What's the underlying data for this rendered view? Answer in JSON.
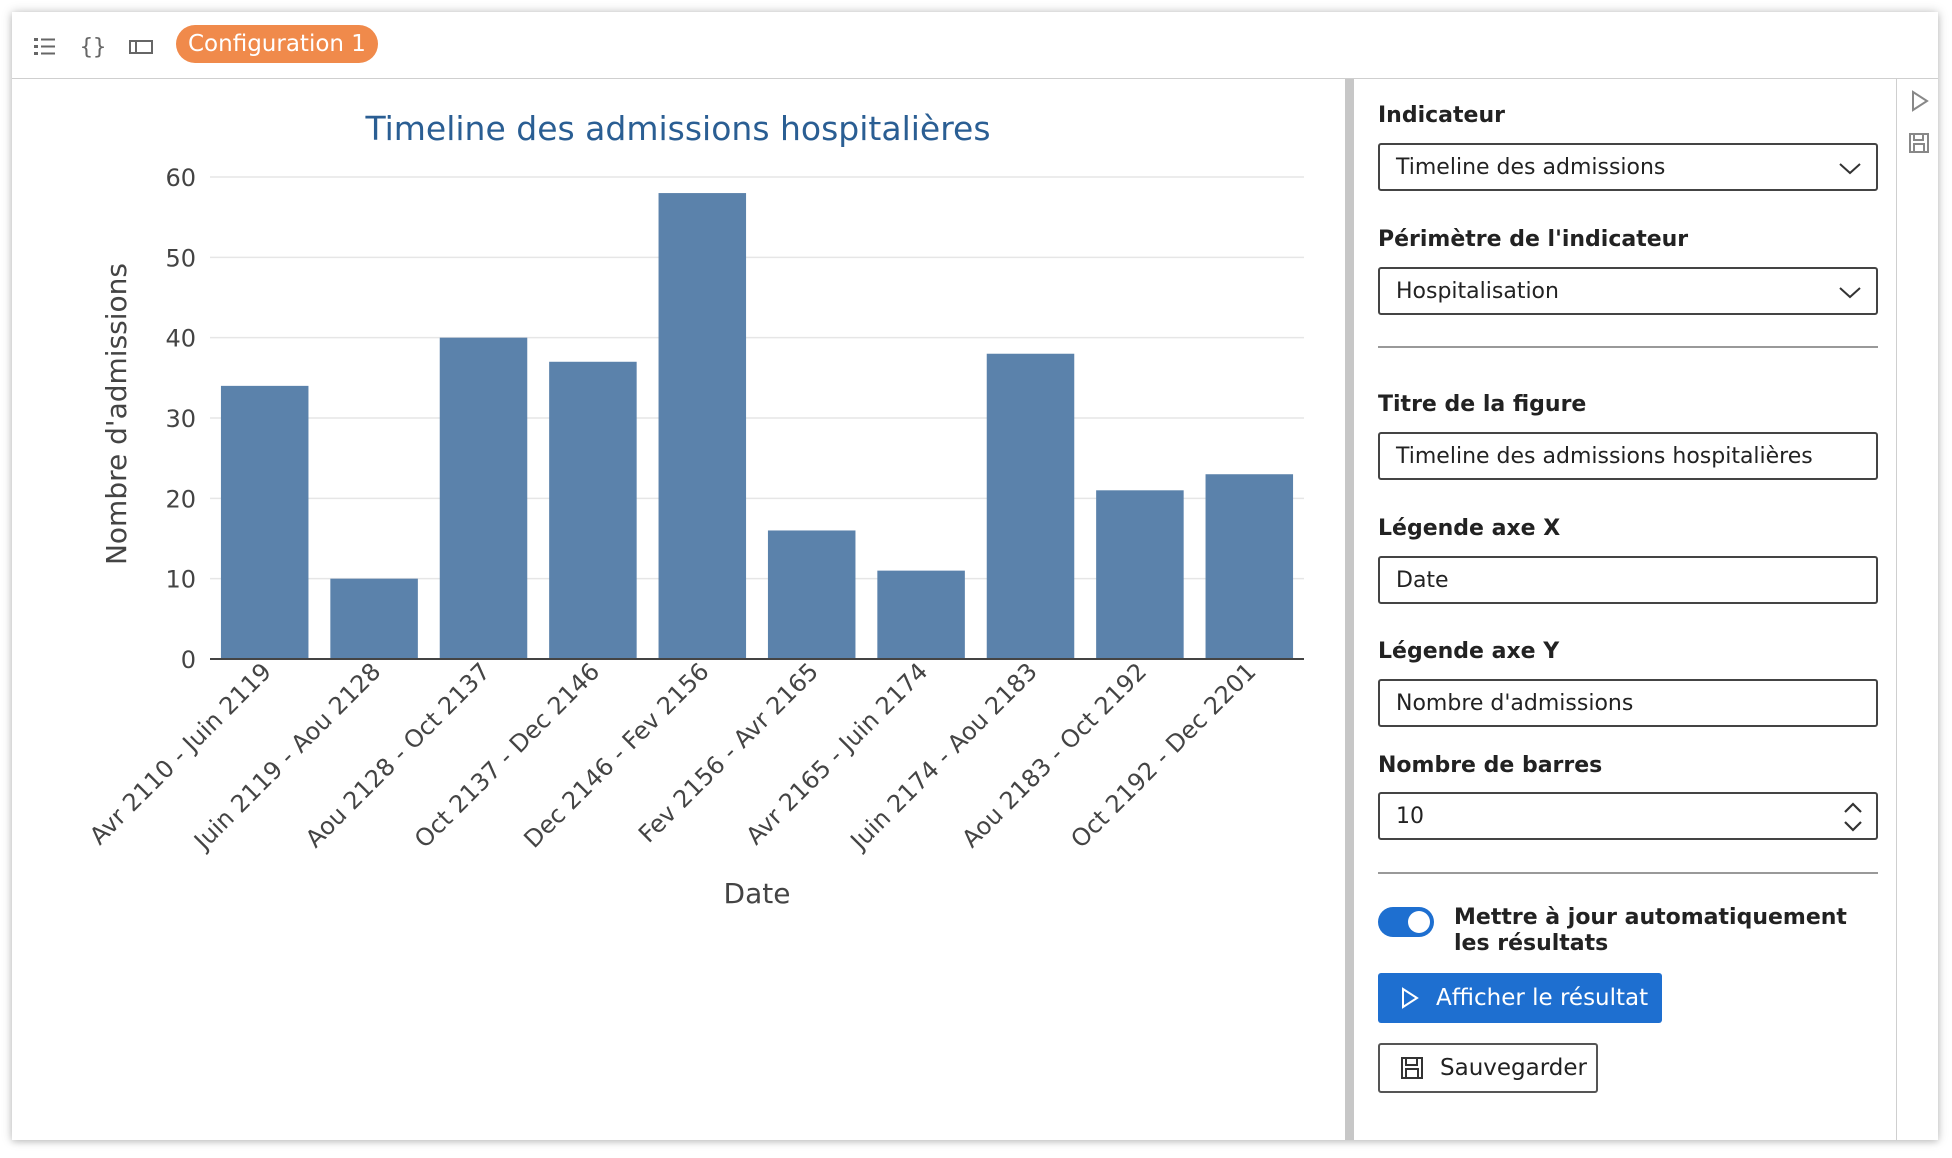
{
  "toolbar": {
    "icons": [
      "list-icon",
      "braces-icon",
      "panel-icon"
    ],
    "config_label": "Configuration 1"
  },
  "chart_data": {
    "type": "bar",
    "title": "Timeline des admissions hospitalières",
    "xlabel": "Date",
    "ylabel": "Nombre d'admissions",
    "ylim": [
      0,
      60
    ],
    "yticks": [
      0,
      10,
      20,
      30,
      40,
      50,
      60
    ],
    "grid": true,
    "bar_color": "#5b82ab",
    "categories": [
      "Avr 2110 - Juin 2119",
      "Juin 2119 - Aou 2128",
      "Aou 2128 - Oct 2137",
      "Oct 2137 - Dec 2146",
      "Dec 2146 - Fev 2156",
      "Fev 2156 - Avr 2165",
      "Avr 2165 - Juin 2174",
      "Juin 2174 - Aou 2183",
      "Aou 2183 - Oct 2192",
      "Oct 2192 - Dec 2201"
    ],
    "values": [
      34,
      10,
      40,
      37,
      58,
      16,
      11,
      38,
      21,
      23
    ]
  },
  "panel": {
    "indicator_label": "Indicateur",
    "indicator_value": "Timeline des admissions",
    "scope_label": "Périmètre de l'indicateur",
    "scope_value": "Hospitalisation",
    "figure_title_label": "Titre de la figure",
    "figure_title_value": "Timeline des admissions hospitalières",
    "x_legend_label": "Légende axe X",
    "x_legend_value": "Date",
    "y_legend_label": "Légende axe Y",
    "y_legend_value": "Nombre d'admissions",
    "bars_label": "Nombre de barres",
    "bars_value": "10",
    "auto_update_label": "Mettre à jour automatiquement les résultats",
    "auto_update_on": true,
    "show_result_label": "Afficher le résultat",
    "save_label": "Sauvegarder",
    "accent_color": "#1e6fd0"
  },
  "side_strip": {
    "icons": [
      "run-icon",
      "save-icon"
    ]
  }
}
